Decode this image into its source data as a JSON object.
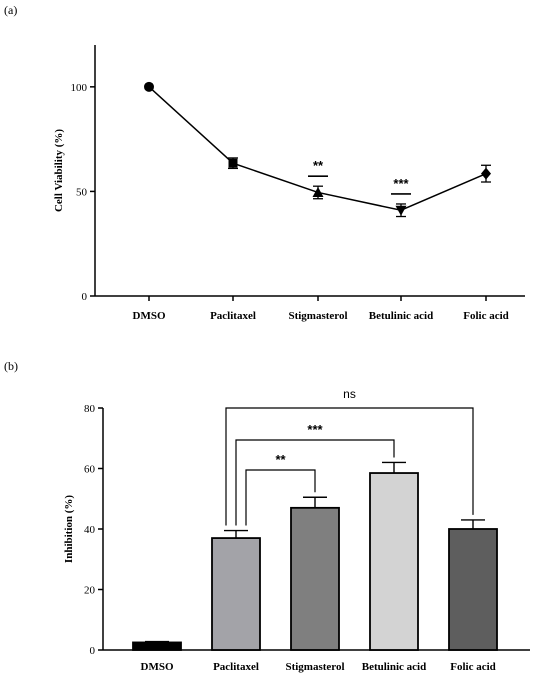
{
  "chart_data": [
    {
      "panel_label": "(a)",
      "type": "line",
      "categories": [
        "DMSO",
        "Paclitaxel",
        "Stigmasterol",
        "Betulinic acid",
        "Folic acid"
      ],
      "values": [
        100,
        63.5,
        49.5,
        41,
        58.5
      ],
      "errors": [
        0,
        2.5,
        3,
        3,
        4
      ],
      "markers": [
        "circle",
        "square",
        "triangle",
        "triangle-down",
        "diamond"
      ],
      "ylabel": "Cell Viability (%)",
      "ylim": [
        0,
        120
      ],
      "yticks": [
        0,
        50,
        100
      ],
      "significance": [
        {
          "category": "Stigmasterol",
          "label": "**"
        },
        {
          "category": "Betulinic acid",
          "label": "***"
        }
      ]
    },
    {
      "panel_label": "(b)",
      "type": "bar",
      "categories": [
        "DMSO",
        "Paclitaxel",
        "Stigmasterol",
        "Betulinic acid",
        "Folic acid"
      ],
      "values": [
        2.5,
        37,
        47,
        58.5,
        40
      ],
      "errors": [
        0.3,
        2.5,
        3.5,
        3.5,
        3
      ],
      "colors": [
        "#000000",
        "#a3a3a8",
        "#7f7f7f",
        "#d3d3d3",
        "#5e5e5e"
      ],
      "ylabel": "Inhibition (%)",
      "ylim": [
        0,
        80
      ],
      "yticks": [
        0,
        20,
        40,
        60,
        80
      ],
      "comparisons": [
        {
          "from": "Paclitaxel",
          "to": "Stigmasterol",
          "label": "**"
        },
        {
          "from": "Paclitaxel",
          "to": "Betulinic acid",
          "label": "***"
        },
        {
          "from": "Paclitaxel",
          "to": "Folic acid",
          "label": "ns"
        }
      ]
    }
  ]
}
